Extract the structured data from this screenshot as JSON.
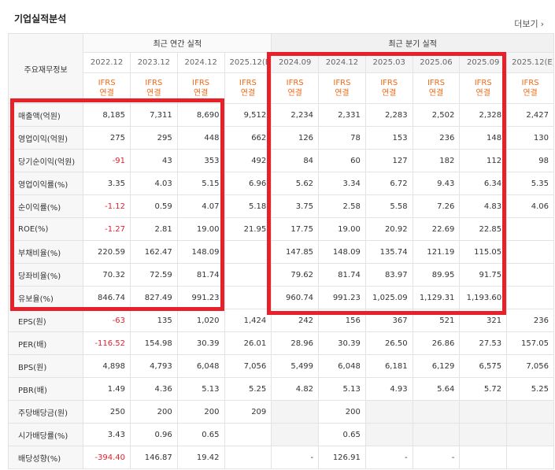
{
  "header": {
    "title": "기업실적분석",
    "more": "더보기"
  },
  "table": {
    "corner": "주요재무정보",
    "groups": [
      {
        "label": "최근 연간 실적",
        "span": 4
      },
      {
        "label": "최근 분기 실적",
        "span": 6
      }
    ],
    "periods": [
      "2022.12",
      "2023.12",
      "2024.12",
      "2025.12(E)",
      "2024.09",
      "2024.12",
      "2025.03",
      "2025.06",
      "2025.09",
      "2025.12(E)"
    ],
    "basis": [
      {
        "top": "IFRS",
        "bottom": "연결"
      },
      {
        "top": "IFRS",
        "bottom": "연결"
      },
      {
        "top": "IFRS",
        "bottom": "연결"
      },
      {
        "top": "IFRS",
        "bottom": "연결"
      },
      {
        "top": "IFRS",
        "bottom": "연결"
      },
      {
        "top": "IFRS",
        "bottom": "연결"
      },
      {
        "top": "IFRS",
        "bottom": "연결"
      },
      {
        "top": "IFRS",
        "bottom": "연결"
      },
      {
        "top": "IFRS",
        "bottom": "연결"
      },
      {
        "top": "IFRS",
        "bottom": "연결"
      }
    ],
    "rows": [
      {
        "label": "매출액(억원)",
        "values": [
          "8,185",
          "7,311",
          "8,690",
          "9,512",
          "2,234",
          "2,331",
          "2,283",
          "2,502",
          "2,328",
          "2,427"
        ]
      },
      {
        "label": "영업이익(억원)",
        "values": [
          "275",
          "295",
          "448",
          "662",
          "126",
          "78",
          "153",
          "236",
          "148",
          "130"
        ]
      },
      {
        "label": "당기순이익(억원)",
        "values": [
          "-91",
          "43",
          "353",
          "492",
          "84",
          "60",
          "127",
          "182",
          "112",
          "98"
        ]
      },
      {
        "label": "영업이익률(%)",
        "values": [
          "3.35",
          "4.03",
          "5.15",
          "6.96",
          "5.62",
          "3.34",
          "6.72",
          "9.43",
          "6.34",
          "5.35"
        ]
      },
      {
        "label": "순이익률(%)",
        "values": [
          "-1.12",
          "0.59",
          "4.07",
          "5.18",
          "3.75",
          "2.58",
          "5.58",
          "7.26",
          "4.83",
          "4.06"
        ]
      },
      {
        "label": "ROE(%)",
        "values": [
          "-1.27",
          "2.81",
          "19.00",
          "21.95",
          "17.75",
          "19.00",
          "20.92",
          "22.69",
          "22.85",
          null
        ]
      },
      {
        "label": "부채비율(%)",
        "values": [
          "220.59",
          "162.47",
          "148.09",
          null,
          "147.85",
          "148.09",
          "135.74",
          "121.19",
          "115.05",
          null
        ]
      },
      {
        "label": "당좌비율(%)",
        "values": [
          "70.32",
          "72.59",
          "81.74",
          null,
          "79.62",
          "81.74",
          "83.97",
          "89.95",
          "91.75",
          null
        ]
      },
      {
        "label": "유보율(%)",
        "values": [
          "846.74",
          "827.49",
          "991.23",
          null,
          "960.74",
          "991.23",
          "1,025.09",
          "1,129.31",
          "1,193.60",
          null
        ]
      },
      {
        "label": "EPS(원)",
        "values": [
          "-63",
          "135",
          "1,020",
          "1,424",
          "242",
          "156",
          "367",
          "521",
          "321",
          "236"
        ]
      },
      {
        "label": "PER(배)",
        "values": [
          "-116.52",
          "154.98",
          "30.39",
          "26.01",
          "28.96",
          "30.39",
          "26.50",
          "26.86",
          "27.53",
          "157.05"
        ]
      },
      {
        "label": "BPS(원)",
        "values": [
          "4,898",
          "4,793",
          "6,048",
          "7,056",
          "5,499",
          "6,048",
          "6,181",
          "6,129",
          "6,575",
          "7,056"
        ]
      },
      {
        "label": "PBR(배)",
        "values": [
          "1.49",
          "4.36",
          "5.13",
          "5.25",
          "4.82",
          "5.13",
          "4.93",
          "5.64",
          "5.72",
          "5.25"
        ]
      },
      {
        "label": "주당배당금(원)",
        "values": [
          "250",
          "200",
          "200",
          "209",
          null,
          "200",
          null,
          null,
          null,
          null
        ],
        "shaded": [
          4,
          6,
          7,
          8,
          9
        ]
      },
      {
        "label": "시가배당률(%)",
        "values": [
          "3.43",
          "0.96",
          "0.65",
          null,
          null,
          "0.65",
          null,
          null,
          null,
          null
        ],
        "shaded": [
          4,
          6,
          7,
          8,
          9
        ]
      },
      {
        "label": "배당성향(%)",
        "values": [
          "-394.40",
          "146.87",
          "19.42",
          null,
          "-",
          "126.91",
          "-",
          "-",
          null,
          null
        ]
      }
    ]
  }
}
